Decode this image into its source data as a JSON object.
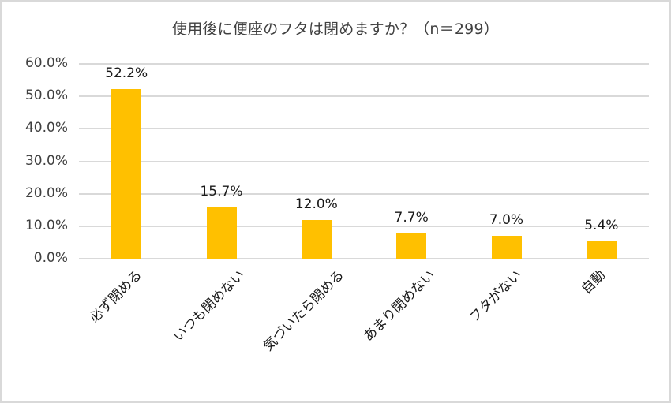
{
  "chart_data": {
    "type": "bar",
    "title": "使用後に便座のフタは閉めますか？（n＝299）",
    "xlabel": "",
    "ylabel": "",
    "categories": [
      "必ず閉める",
      "いつも閉めない",
      "気づいたら閉める",
      "あまり閉めない",
      "フタがない",
      "自動"
    ],
    "values": [
      52.2,
      15.7,
      12.0,
      7.7,
      7.0,
      5.4
    ],
    "value_labels": [
      "52.2%",
      "15.7%",
      "12.0%",
      "7.7%",
      "7.0%",
      "5.4%"
    ],
    "ylim": [
      0,
      60
    ],
    "yticks": [
      "0.0%",
      "10.0%",
      "20.0%",
      "30.0%",
      "40.0%",
      "50.0%",
      "60.0%"
    ],
    "grid": true,
    "legend": "none",
    "bar_color": "#ffc000"
  }
}
